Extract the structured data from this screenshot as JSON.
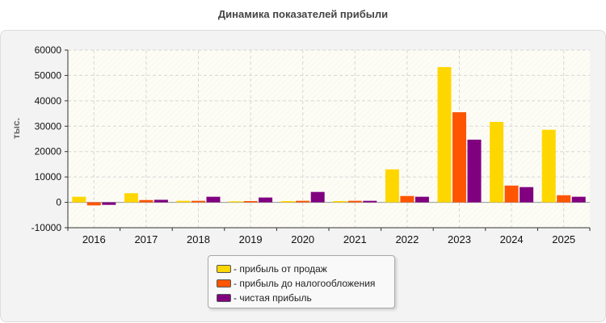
{
  "chart_data": {
    "type": "bar",
    "title": "Динамика показателей прибыли",
    "ylabel": "тыс.",
    "xlabel": "",
    "ylim": [
      -10000,
      60000
    ],
    "yticks": [
      -10000,
      0,
      10000,
      20000,
      30000,
      40000,
      50000,
      60000
    ],
    "grid": true,
    "legend_position": "bottom",
    "categories": [
      "2016",
      "2017",
      "2018",
      "2019",
      "2020",
      "2021",
      "2022",
      "2023",
      "2024",
      "2025"
    ],
    "series": [
      {
        "name": "- прибыль от продаж",
        "color": "#ffd700",
        "values": [
          2200,
          3600,
          600,
          400,
          500,
          500,
          13000,
          53300,
          31700,
          28600
        ]
      },
      {
        "name": "- прибыль до налогообложения",
        "color": "#ff5500",
        "values": [
          -1200,
          900,
          600,
          500,
          600,
          600,
          2500,
          35500,
          6600,
          2800
        ]
      },
      {
        "name": "- чистая прибыль",
        "color": "#800080",
        "values": [
          -1000,
          1000,
          2200,
          1900,
          4100,
          600,
          2200,
          24700,
          6000,
          2200
        ]
      }
    ]
  }
}
